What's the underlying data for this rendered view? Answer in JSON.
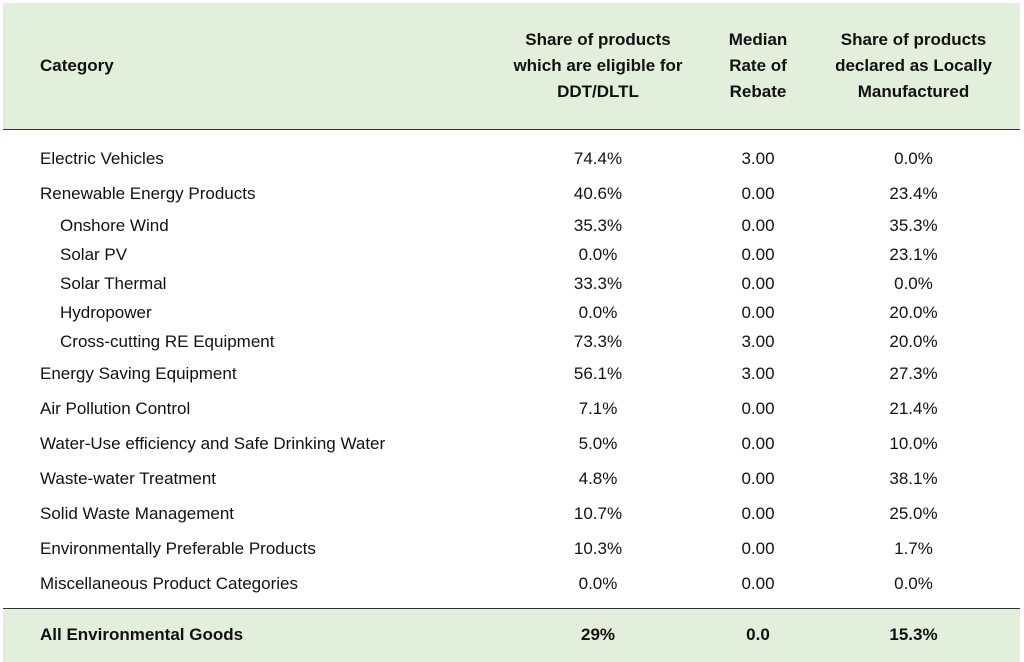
{
  "headers": {
    "category": "Category",
    "eligible": [
      "Share of products",
      "which are eligible for",
      "DDT/DLTL"
    ],
    "rate": [
      "Median",
      "Rate of",
      "Rebate"
    ],
    "local": [
      "Share of products",
      "declared as Locally",
      "Manufactured"
    ]
  },
  "rows": [
    {
      "category": "Electric Vehicles",
      "eligible": "74.4%",
      "rate": "3.00",
      "local": "0.0%"
    },
    {
      "category": "Renewable Energy Products",
      "eligible": "40.6%",
      "rate": "0.00",
      "local": "23.4%"
    },
    {
      "category": "Onshore Wind",
      "eligible": "35.3%",
      "rate": "0.00",
      "local": "35.3%"
    },
    {
      "category": "Solar PV",
      "eligible": "0.0%",
      "rate": "0.00",
      "local": "23.1%"
    },
    {
      "category": "Solar Thermal",
      "eligible": "33.3%",
      "rate": "0.00",
      "local": "0.0%"
    },
    {
      "category": "Hydropower",
      "eligible": "0.0%",
      "rate": "0.00",
      "local": "20.0%"
    },
    {
      "category": "Cross-cutting RE Equipment",
      "eligible": "73.3%",
      "rate": "3.00",
      "local": "20.0%"
    },
    {
      "category": "Energy Saving Equipment",
      "eligible": "56.1%",
      "rate": "3.00",
      "local": "27.3%"
    },
    {
      "category": "Air Pollution Control",
      "eligible": "7.1%",
      "rate": "0.00",
      "local": "21.4%"
    },
    {
      "category": "Water-Use efficiency and Safe Drinking Water",
      "eligible": "5.0%",
      "rate": "0.00",
      "local": "10.0%"
    },
    {
      "category": "Waste-water Treatment",
      "eligible": "4.8%",
      "rate": "0.00",
      "local": "38.1%"
    },
    {
      "category": "Solid Waste Management",
      "eligible": "10.7%",
      "rate": "0.00",
      "local": "25.0%"
    },
    {
      "category": "Environmentally Preferable Products",
      "eligible": "10.3%",
      "rate": "0.00",
      "local": "1.7%"
    },
    {
      "category": "Miscellaneous Product Categories",
      "eligible": "0.0%",
      "rate": "0.00",
      "local": "0.0%"
    }
  ],
  "total": {
    "category": "All Environmental Goods",
    "eligible": "29%",
    "rate": "0.0",
    "local": "15.3%"
  },
  "colors": {
    "header_bg": "#e2efda",
    "rule": "#333333"
  }
}
